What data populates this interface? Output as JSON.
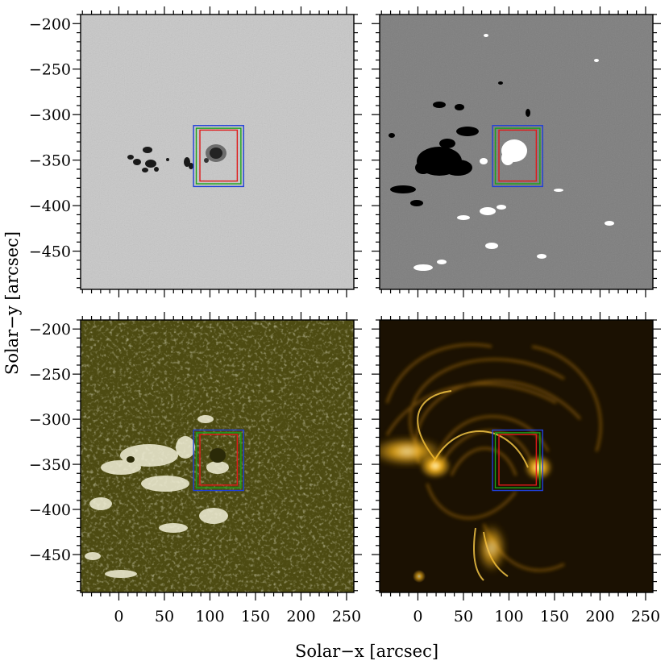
{
  "figure": {
    "xlabel": "Solar−x   [arcsec]",
    "ylabel": "Solar−y   [arcsec]"
  },
  "chart_data": {
    "type": "image-grid",
    "layout": "2x2",
    "xlabel": "Solar−x   [arcsec]",
    "ylabel": "Solar−y   [arcsec]",
    "xlim": [
      -42,
      258
    ],
    "ylim": [
      -492,
      -190
    ],
    "x_ticks": [
      0,
      50,
      100,
      150,
      200,
      250
    ],
    "y_ticks": [
      -200,
      -250,
      -300,
      -350,
      -400,
      -450
    ],
    "x_tick_labels": [
      "0",
      "50",
      "100",
      "150",
      "200",
      "250"
    ],
    "y_tick_labels": [
      "−200",
      "−250",
      "−300",
      "−350",
      "−400",
      "−450"
    ],
    "panels": [
      {
        "position": "top-left",
        "colormap": "gray-continuum",
        "show_y_labels": true,
        "show_x_labels": false,
        "background": "#c6c6c6"
      },
      {
        "position": "top-right",
        "colormap": "gray-magnetogram",
        "show_y_labels": false,
        "show_x_labels": false,
        "background": "#7e7e7e"
      },
      {
        "position": "bottom-left",
        "colormap": "olive",
        "show_y_labels": true,
        "show_x_labels": true,
        "background": "#4e4c12"
      },
      {
        "position": "bottom-right",
        "colormap": "gold-euv",
        "show_y_labels": false,
        "show_x_labels": true,
        "background": "#1c1202"
      }
    ],
    "boxes": [
      {
        "color": "#1f3fd8",
        "x": [
          82,
          137
        ],
        "y": [
          -379,
          -312
        ]
      },
      {
        "color": "#19a319",
        "x": [
          85,
          134
        ],
        "y": [
          -376,
          -315
        ]
      },
      {
        "color": "#e01a1a",
        "x": [
          89,
          130
        ],
        "y": [
          -373,
          -317
        ]
      }
    ]
  }
}
